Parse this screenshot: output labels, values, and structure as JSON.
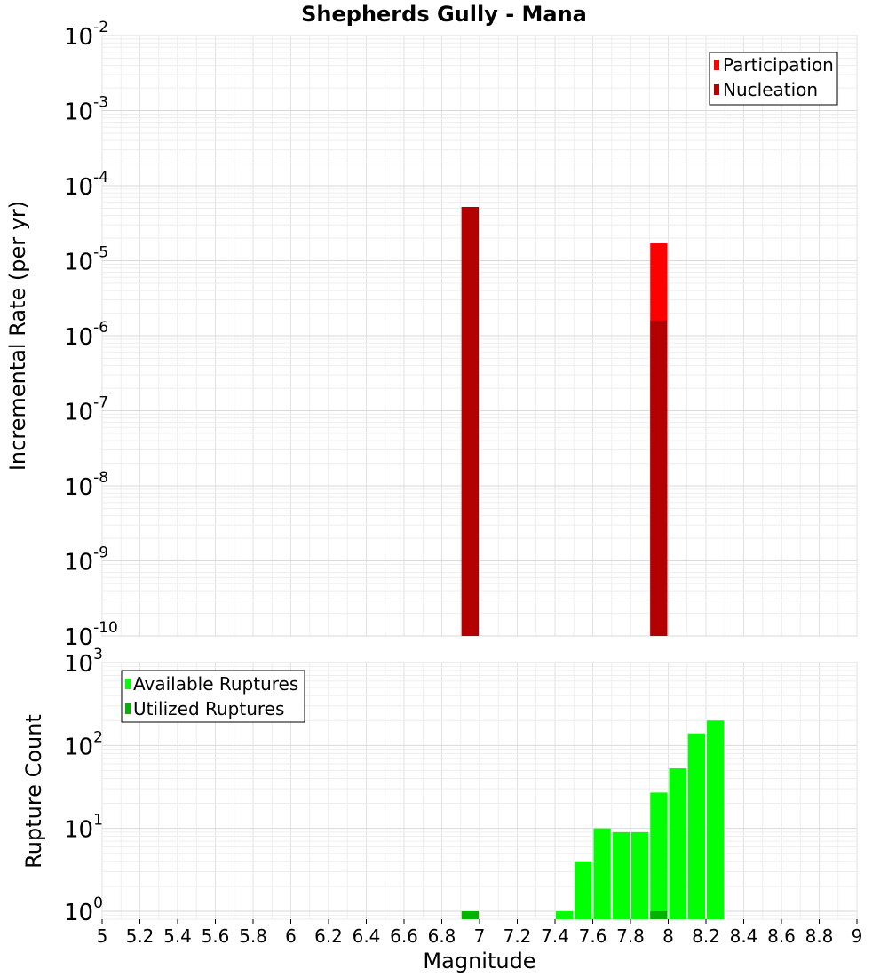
{
  "chart_data": [
    {
      "type": "bar",
      "title": "Shepherds Gully - Mana",
      "ylabel": "Incremental Rate (per yr)",
      "xlabel": "",
      "yscale": "log",
      "ylim": [
        1e-10,
        0.01
      ],
      "xlim": [
        5,
        9
      ],
      "bin_width": 0.1,
      "legend_position": "top-right",
      "y_ticks": [
        {
          "base": "10",
          "exp": "-10"
        },
        {
          "base": "10",
          "exp": "-9"
        },
        {
          "base": "10",
          "exp": "-8"
        },
        {
          "base": "10",
          "exp": "-7"
        },
        {
          "base": "10",
          "exp": "-6"
        },
        {
          "base": "10",
          "exp": "-5"
        },
        {
          "base": "10",
          "exp": "-4"
        },
        {
          "base": "10",
          "exp": "-3"
        },
        {
          "base": "10",
          "exp": "-2"
        }
      ],
      "series": [
        {
          "name": "Participation",
          "color": "#ff0000",
          "x": [
            6.95,
            7.95
          ],
          "values": [
            5.2e-05,
            1.7e-05
          ]
        },
        {
          "name": "Nucleation",
          "color": "#b30000",
          "x": [
            6.95,
            7.95
          ],
          "values": [
            5.2e-05,
            1.6e-06
          ]
        }
      ]
    },
    {
      "type": "bar",
      "title": "",
      "ylabel": "Rupture Count",
      "xlabel": "Magnitude",
      "yscale": "log",
      "ylim": [
        0.8,
        1000
      ],
      "xlim": [
        5,
        9
      ],
      "bin_width": 0.1,
      "legend_position": "top-left",
      "y_ticks": [
        {
          "base": "10",
          "exp": "0",
          "value": 1
        },
        {
          "base": "10",
          "exp": "1",
          "value": 10
        },
        {
          "base": "10",
          "exp": "2",
          "value": 100
        },
        {
          "base": "10",
          "exp": "3",
          "value": 1000
        }
      ],
      "x_ticks": [
        "5",
        "5.2",
        "5.4",
        "5.6",
        "5.8",
        "6",
        "6.2",
        "6.4",
        "6.6",
        "6.8",
        "7",
        "7.2",
        "7.4",
        "7.6",
        "7.8",
        "8",
        "8.2",
        "8.4",
        "8.6",
        "8.8",
        "9"
      ],
      "series": [
        {
          "name": "Available Ruptures",
          "color": "#00ff00",
          "x": [
            7.45,
            7.55,
            7.65,
            7.75,
            7.85,
            7.95,
            8.05,
            8.15,
            8.25
          ],
          "values": [
            1,
            4,
            10,
            9,
            9,
            27,
            53,
            140,
            200
          ]
        },
        {
          "name": "Utilized Ruptures",
          "color": "#00b300",
          "x": [
            6.95,
            7.95
          ],
          "values": [
            1,
            1
          ]
        }
      ]
    }
  ]
}
